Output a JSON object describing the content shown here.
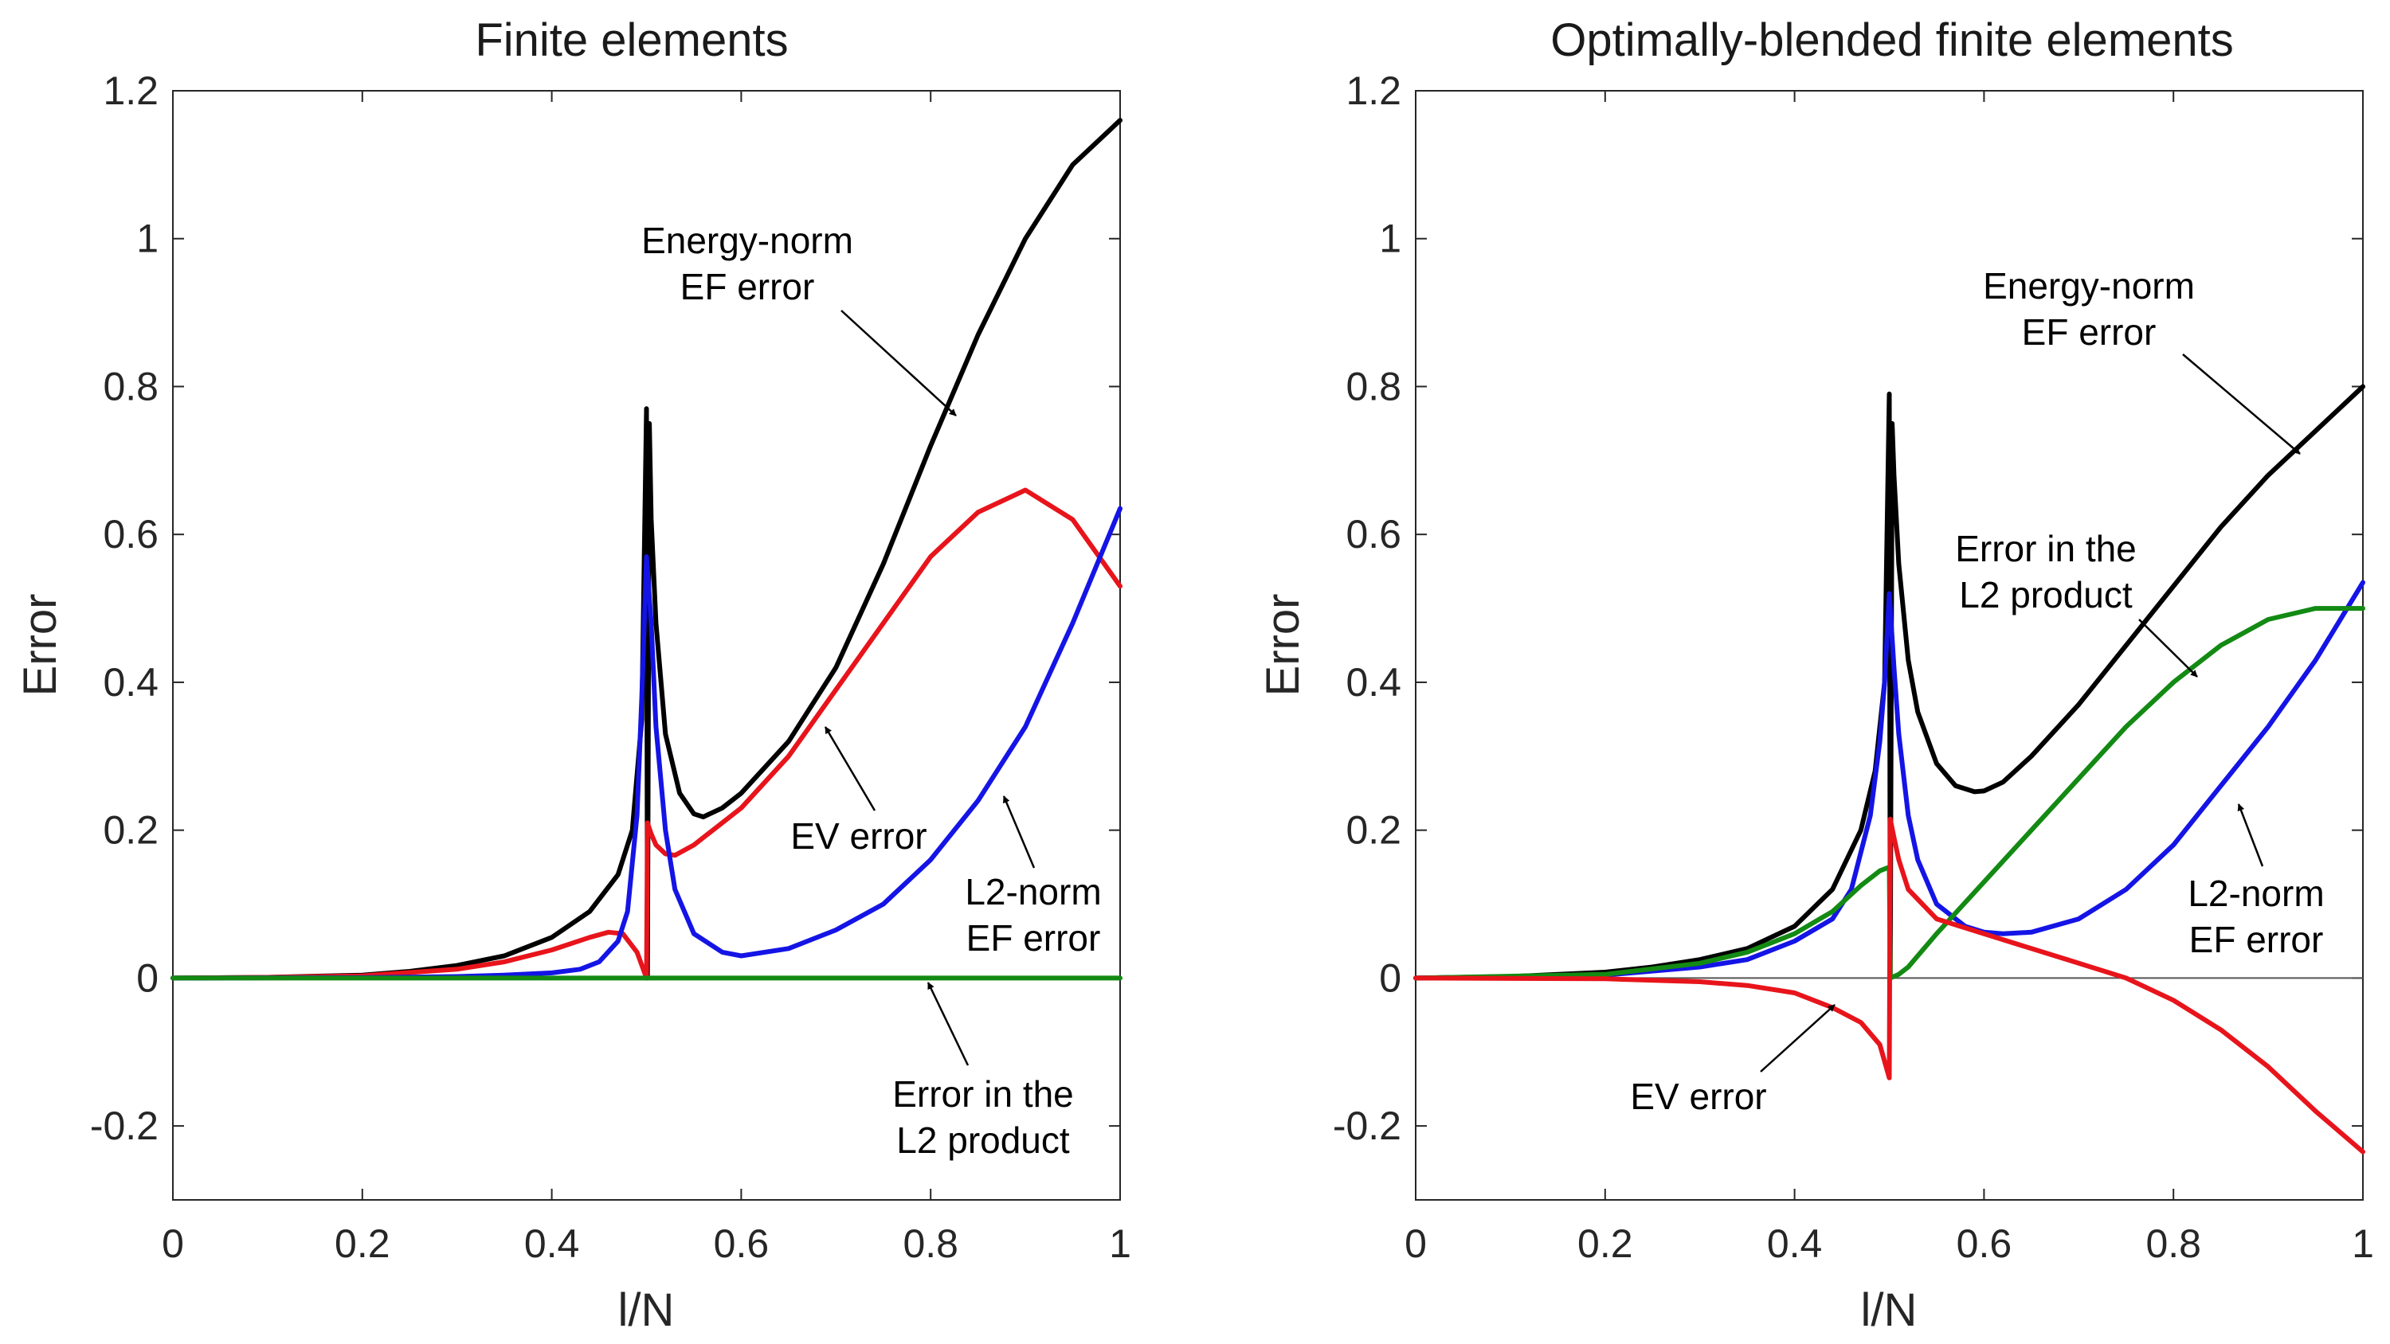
{
  "chart_data": [
    {
      "type": "line",
      "title": "Finite elements",
      "xlabel": "l/N",
      "ylabel": "Error",
      "xlim": [
        0,
        1
      ],
      "ylim": [
        -0.3,
        1.2
      ],
      "xticks": [
        "0",
        "0.2",
        "0.4",
        "0.6",
        "0.8",
        "1"
      ],
      "yticks": [
        "-0.2",
        "0",
        "0.2",
        "0.4",
        "0.6",
        "0.8",
        "1",
        "1.2"
      ],
      "zero_line": false,
      "series": [
        {
          "name": "Energy-norm EF error",
          "color": "#000000",
          "x": [
            0,
            0.1,
            0.2,
            0.25,
            0.3,
            0.35,
            0.4,
            0.44,
            0.47,
            0.485,
            0.495,
            0.5,
            0.501,
            0.503,
            0.505,
            0.51,
            0.52,
            0.535,
            0.55,
            0.56,
            0.58,
            0.6,
            0.65,
            0.7,
            0.75,
            0.8,
            0.85,
            0.9,
            0.95,
            1.0
          ],
          "y": [
            0,
            0.001,
            0.004,
            0.009,
            0.017,
            0.03,
            0.055,
            0.09,
            0.14,
            0.2,
            0.35,
            0.77,
            0.0,
            0.75,
            0.62,
            0.48,
            0.33,
            0.25,
            0.222,
            0.218,
            0.23,
            0.25,
            0.32,
            0.42,
            0.56,
            0.72,
            0.87,
            1.0,
            1.1,
            1.16
          ]
        },
        {
          "name": "EV error",
          "color": "#e8141b",
          "x": [
            0,
            0.1,
            0.2,
            0.3,
            0.35,
            0.4,
            0.44,
            0.46,
            0.475,
            0.49,
            0.5,
            0.501,
            0.505,
            0.51,
            0.52,
            0.53,
            0.55,
            0.6,
            0.65,
            0.7,
            0.75,
            0.8,
            0.85,
            0.9,
            0.95,
            1.0
          ],
          "y": [
            0,
            0.001,
            0.003,
            0.012,
            0.022,
            0.038,
            0.055,
            0.062,
            0.06,
            0.035,
            0.0,
            0.21,
            0.195,
            0.18,
            0.168,
            0.166,
            0.18,
            0.23,
            0.3,
            0.39,
            0.48,
            0.57,
            0.63,
            0.66,
            0.62,
            0.53
          ]
        },
        {
          "name": "L2-norm EF error",
          "color": "#1414e6",
          "x": [
            0,
            0.2,
            0.3,
            0.35,
            0.4,
            0.43,
            0.45,
            0.47,
            0.48,
            0.49,
            0.495,
            0.5,
            0.505,
            0.51,
            0.52,
            0.53,
            0.55,
            0.58,
            0.6,
            0.65,
            0.7,
            0.75,
            0.8,
            0.85,
            0.9,
            0.95,
            1.0
          ],
          "y": [
            0,
            0.0005,
            0.002,
            0.004,
            0.007,
            0.012,
            0.022,
            0.05,
            0.09,
            0.22,
            0.38,
            0.57,
            0.48,
            0.34,
            0.2,
            0.12,
            0.06,
            0.035,
            0.03,
            0.04,
            0.065,
            0.1,
            0.16,
            0.24,
            0.34,
            0.48,
            0.635
          ]
        },
        {
          "name": "Error in the L2 product",
          "color": "#138a13",
          "x": [
            0,
            1
          ],
          "y": [
            0,
            0
          ]
        }
      ],
      "annotations": [
        {
          "lines": [
            "Energy-norm",
            "EF error"
          ],
          "series": "Energy-norm EF error"
        },
        {
          "lines": [
            "EV error"
          ],
          "series": "EV error"
        },
        {
          "lines": [
            "L2-norm",
            "EF error"
          ],
          "series": "L2-norm EF error"
        },
        {
          "lines": [
            "Error in the",
            "L2 product"
          ],
          "series": "Error in the L2 product"
        }
      ]
    },
    {
      "type": "line",
      "title": "Optimally-blended finite elements",
      "xlabel": "l/N",
      "ylabel": "Error",
      "xlim": [
        0,
        1
      ],
      "ylim": [
        -0.3,
        1.2
      ],
      "xticks": [
        "0",
        "0.2",
        "0.4",
        "0.6",
        "0.8",
        "1"
      ],
      "yticks": [
        "-0.2",
        "0",
        "0.2",
        "0.4",
        "0.6",
        "0.8",
        "1",
        "1.2"
      ],
      "zero_line": true,
      "series": [
        {
          "name": "Energy-norm EF error",
          "color": "#000000",
          "x": [
            0,
            0.1,
            0.2,
            0.25,
            0.3,
            0.35,
            0.4,
            0.44,
            0.47,
            0.485,
            0.495,
            0.5,
            0.501,
            0.503,
            0.505,
            0.51,
            0.52,
            0.53,
            0.55,
            0.57,
            0.59,
            0.6,
            0.62,
            0.65,
            0.7,
            0.75,
            0.8,
            0.85,
            0.9,
            0.95,
            1.0
          ],
          "y": [
            0,
            0.002,
            0.008,
            0.015,
            0.025,
            0.04,
            0.07,
            0.12,
            0.2,
            0.28,
            0.4,
            0.79,
            0.0,
            0.75,
            0.68,
            0.56,
            0.43,
            0.36,
            0.29,
            0.26,
            0.252,
            0.253,
            0.265,
            0.3,
            0.37,
            0.45,
            0.53,
            0.61,
            0.68,
            0.74,
            0.8
          ]
        },
        {
          "name": "L2-norm EF error",
          "color": "#1414e6",
          "x": [
            0,
            0.2,
            0.3,
            0.35,
            0.4,
            0.44,
            0.46,
            0.48,
            0.49,
            0.495,
            0.5,
            0.505,
            0.51,
            0.52,
            0.53,
            0.55,
            0.58,
            0.6,
            0.62,
            0.65,
            0.7,
            0.75,
            0.8,
            0.85,
            0.9,
            0.95,
            1.0
          ],
          "y": [
            0,
            0.004,
            0.015,
            0.025,
            0.05,
            0.08,
            0.12,
            0.22,
            0.32,
            0.4,
            0.52,
            0.42,
            0.33,
            0.22,
            0.16,
            0.1,
            0.07,
            0.062,
            0.06,
            0.062,
            0.08,
            0.12,
            0.18,
            0.26,
            0.34,
            0.43,
            0.535
          ]
        },
        {
          "name": "Error in the L2 product",
          "color": "#138a13",
          "x": [
            0,
            0.2,
            0.3,
            0.35,
            0.4,
            0.44,
            0.47,
            0.49,
            0.5,
            0.501,
            0.51,
            0.52,
            0.55,
            0.6,
            0.65,
            0.7,
            0.75,
            0.8,
            0.85,
            0.9,
            0.95,
            1.0
          ],
          "y": [
            0,
            0.005,
            0.02,
            0.035,
            0.06,
            0.09,
            0.125,
            0.145,
            0.15,
            0.0,
            0.005,
            0.015,
            0.06,
            0.13,
            0.2,
            0.27,
            0.34,
            0.4,
            0.45,
            0.485,
            0.5,
            0.5
          ]
        },
        {
          "name": "EV error",
          "color": "#e8141b",
          "x": [
            0,
            0.2,
            0.3,
            0.35,
            0.4,
            0.44,
            0.47,
            0.49,
            0.5,
            0.501,
            0.505,
            0.51,
            0.52,
            0.55,
            0.6,
            0.65,
            0.7,
            0.75,
            0.8,
            0.85,
            0.9,
            0.95,
            1.0
          ],
          "y": [
            0,
            -0.001,
            -0.005,
            -0.01,
            -0.02,
            -0.04,
            -0.06,
            -0.09,
            -0.135,
            0.215,
            0.19,
            0.16,
            0.12,
            0.08,
            0.06,
            0.04,
            0.02,
            0.0,
            -0.03,
            -0.07,
            -0.12,
            -0.18,
            -0.235
          ]
        }
      ],
      "annotations": [
        {
          "lines": [
            "Energy-norm",
            "EF error"
          ],
          "series": "Energy-norm EF error"
        },
        {
          "lines": [
            "Error in the",
            "L2 product"
          ],
          "series": "Error in the L2 product"
        },
        {
          "lines": [
            "L2-norm",
            "EF error"
          ],
          "series": "L2-norm EF error"
        },
        {
          "lines": [
            "EV error"
          ],
          "series": "EV error"
        }
      ]
    }
  ]
}
